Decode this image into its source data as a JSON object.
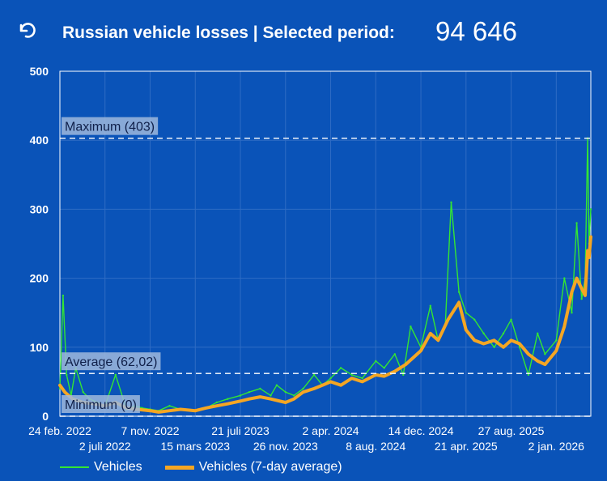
{
  "header": {
    "back_icon": "undo-arrow-icon",
    "title": "Russian vehicle losses | Selected period:",
    "total": "94 646"
  },
  "colors": {
    "background": "#0a53b8",
    "daily_series": "#33e633",
    "average_series": "#f5a623",
    "reference_line": "#ffffff",
    "reference_label_bg": "#9fb8dc"
  },
  "chart_data": {
    "type": "line",
    "title": "",
    "xlabel": "",
    "ylabel": "",
    "ylim": [
      0,
      500
    ],
    "yticks": [
      0,
      100,
      200,
      300,
      400,
      500
    ],
    "grid": true,
    "x_range": [
      "2022-02-24",
      "2026-04-10"
    ],
    "xtick_labels_row1": [
      "24 feb. 2022",
      "7 nov. 2022",
      "21 juli 2023",
      "2 apr. 2024",
      "14 dec. 2024",
      "27 aug. 2025"
    ],
    "xtick_dates_row1": [
      "2022-02-24",
      "2022-11-07",
      "2023-07-21",
      "2024-04-02",
      "2024-12-14",
      "2025-08-27"
    ],
    "xtick_labels_row2": [
      "2 juli 2022",
      "15 mars 2023",
      "26 nov. 2023",
      "8 aug. 2024",
      "21 apr. 2025",
      "2 jan. 2026"
    ],
    "xtick_dates_row2": [
      "2022-07-02",
      "2023-03-15",
      "2023-11-26",
      "2024-08-08",
      "2025-04-21",
      "2026-01-02"
    ],
    "reference_lines": [
      {
        "label": "Maximum (403)",
        "value": 403
      },
      {
        "label": "Average (62,02)",
        "value": 62.02
      },
      {
        "label": "Minimum (0)",
        "value": 0
      }
    ],
    "series": [
      {
        "name": "Vehicles",
        "x": [
          "2022-02-24",
          "2022-03-05",
          "2022-03-15",
          "2022-03-28",
          "2022-04-10",
          "2022-05-01",
          "2022-05-20",
          "2022-06-10",
          "2022-07-02",
          "2022-08-01",
          "2022-09-01",
          "2022-09-25",
          "2022-10-15",
          "2022-11-07",
          "2022-12-01",
          "2023-01-01",
          "2023-02-01",
          "2023-03-15",
          "2023-04-15",
          "2023-05-15",
          "2023-06-15",
          "2023-07-21",
          "2023-08-15",
          "2023-09-15",
          "2023-10-15",
          "2023-11-01",
          "2023-11-26",
          "2023-12-20",
          "2024-01-15",
          "2024-02-15",
          "2024-03-10",
          "2024-04-02",
          "2024-05-01",
          "2024-06-01",
          "2024-07-01",
          "2024-08-08",
          "2024-09-01",
          "2024-10-01",
          "2024-10-25",
          "2024-11-15",
          "2024-12-14",
          "2025-01-10",
          "2025-02-01",
          "2025-02-21",
          "2025-03-10",
          "2025-04-01",
          "2025-04-21",
          "2025-05-15",
          "2025-06-10",
          "2025-07-10",
          "2025-08-05",
          "2025-08-27",
          "2025-09-20",
          "2025-10-15",
          "2025-11-10",
          "2025-12-01",
          "2026-01-02",
          "2026-01-25",
          "2026-02-15",
          "2026-03-01",
          "2026-03-15",
          "2026-03-25",
          "2026-04-01",
          "2026-04-05",
          "2026-04-10"
        ],
        "values": [
          40,
          175,
          60,
          30,
          70,
          35,
          25,
          20,
          15,
          60,
          10,
          15,
          12,
          10,
          8,
          15,
          10,
          8,
          12,
          20,
          25,
          30,
          35,
          40,
          30,
          45,
          35,
          30,
          40,
          60,
          45,
          55,
          70,
          60,
          55,
          80,
          70,
          90,
          60,
          130,
          100,
          160,
          110,
          130,
          310,
          180,
          150,
          140,
          120,
          100,
          120,
          140,
          100,
          60,
          120,
          90,
          110,
          200,
          150,
          280,
          170,
          200,
          403,
          250,
          300
        ]
      },
      {
        "name": "Vehicles (7-day average)",
        "x": [
          "2022-02-24",
          "2022-03-10",
          "2022-04-01",
          "2022-05-01",
          "2022-06-01",
          "2022-07-02",
          "2022-08-01",
          "2022-09-01",
          "2022-10-01",
          "2022-11-07",
          "2022-12-01",
          "2023-01-01",
          "2023-02-01",
          "2023-03-15",
          "2023-04-15",
          "2023-05-15",
          "2023-06-15",
          "2023-07-21",
          "2023-08-15",
          "2023-09-15",
          "2023-10-15",
          "2023-11-26",
          "2023-12-20",
          "2024-01-15",
          "2024-02-15",
          "2024-03-10",
          "2024-04-02",
          "2024-05-01",
          "2024-06-01",
          "2024-07-01",
          "2024-08-08",
          "2024-09-01",
          "2024-10-01",
          "2024-11-01",
          "2024-12-14",
          "2025-01-10",
          "2025-02-01",
          "2025-03-01",
          "2025-04-01",
          "2025-04-21",
          "2025-05-15",
          "2025-06-10",
          "2025-07-10",
          "2025-08-05",
          "2025-08-27",
          "2025-09-20",
          "2025-10-15",
          "2025-11-10",
          "2025-12-01",
          "2026-01-02",
          "2026-01-25",
          "2026-02-15",
          "2026-03-01",
          "2026-03-15",
          "2026-03-25",
          "2026-04-01",
          "2026-04-05",
          "2026-04-10"
        ],
        "values": [
          45,
          35,
          25,
          20,
          18,
          15,
          20,
          12,
          10,
          8,
          6,
          8,
          10,
          8,
          12,
          15,
          18,
          22,
          25,
          28,
          25,
          20,
          25,
          35,
          40,
          45,
          50,
          45,
          55,
          50,
          60,
          58,
          65,
          75,
          95,
          120,
          110,
          140,
          165,
          125,
          110,
          105,
          110,
          100,
          110,
          105,
          90,
          80,
          75,
          95,
          130,
          180,
          200,
          185,
          175,
          240,
          230,
          260
        ]
      }
    ]
  },
  "legend": {
    "items": [
      "Vehicles",
      "Vehicles (7-day average)"
    ]
  }
}
